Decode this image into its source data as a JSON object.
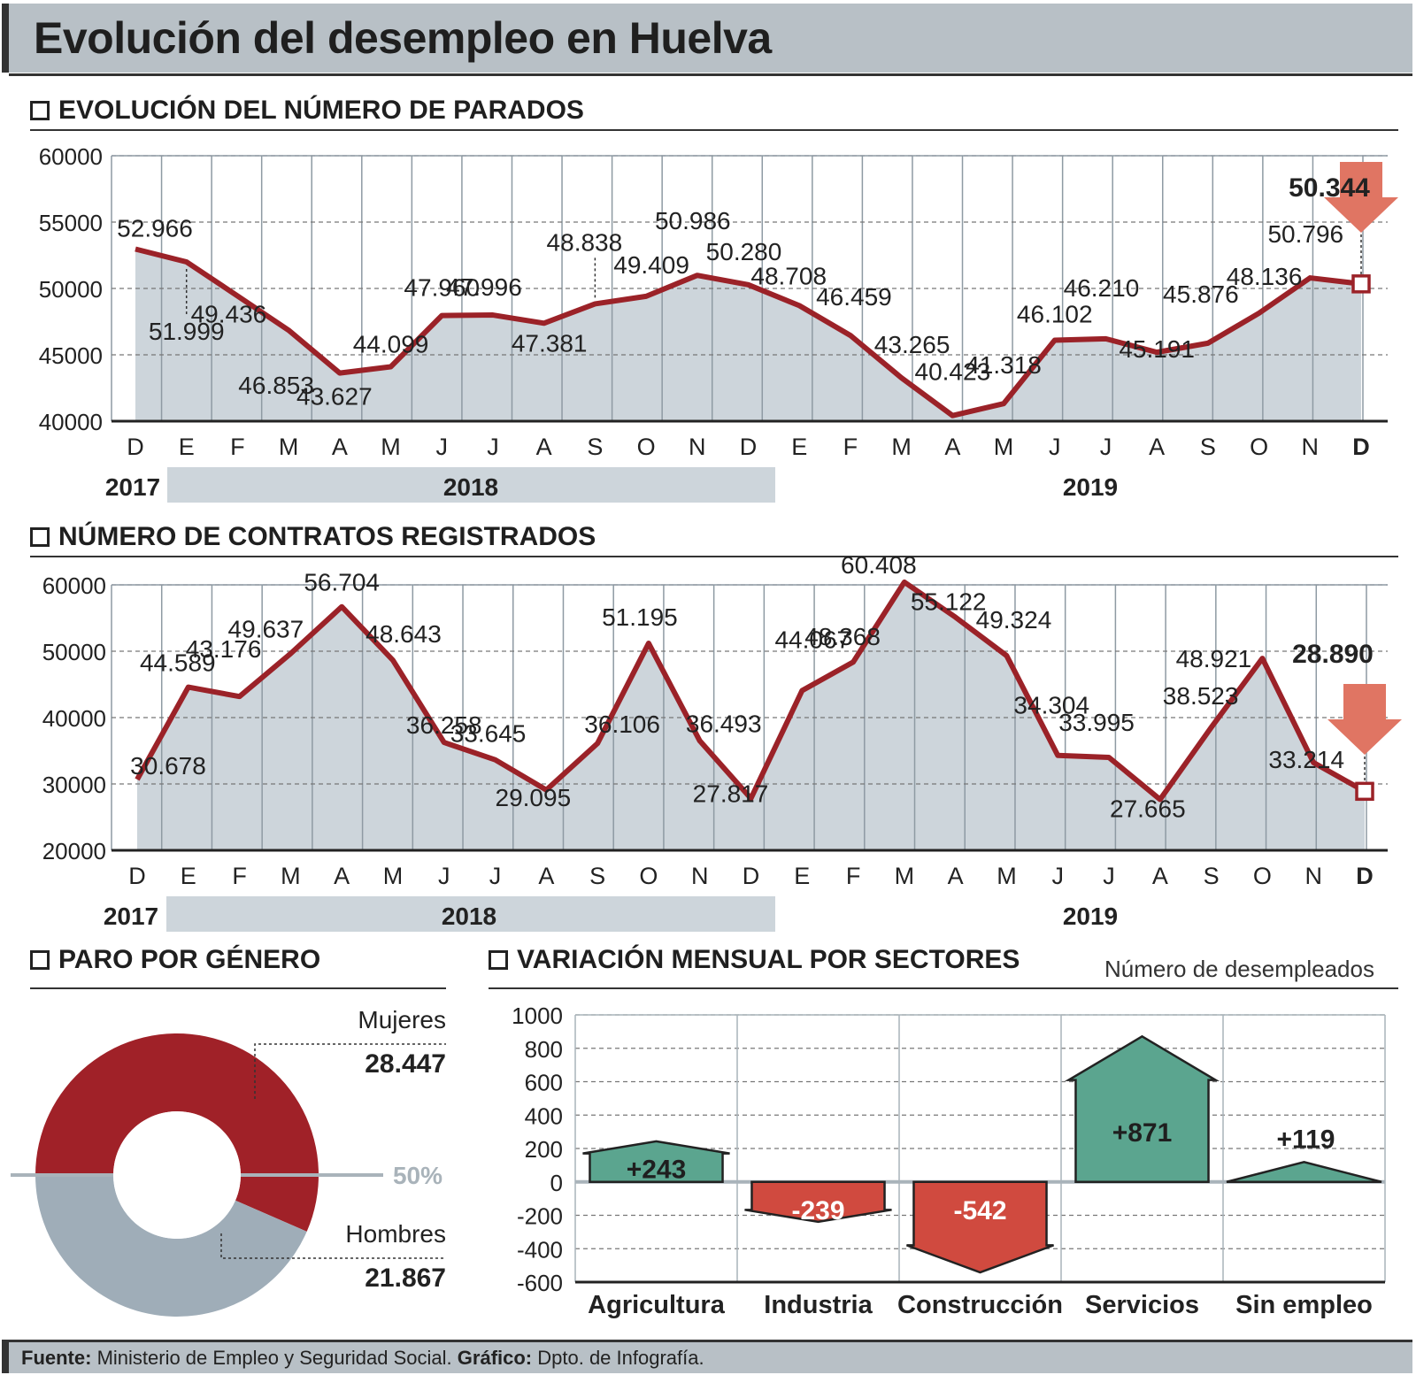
{
  "title": "Evolución del desempleo en Huelva",
  "sections": {
    "parados": "EVOLUCIÓN DEL NÚMERO DE PARADOS",
    "contratos": "NÚMERO DE CONTRATOS REGISTRADOS",
    "genero": "PARO POR GÉNERO",
    "sectores": "VARIACIÓN MENSUAL POR SECTORES",
    "sectores_note": "Número de desempleados"
  },
  "footer": {
    "fuente_label": "Fuente:",
    "fuente_text": " Ministerio de Empleo y Seguridad Social. ",
    "grafico_label": "Gráfico:",
    "grafico_text": " Dpto. de Infografía."
  },
  "colors": {
    "line": "#9b2228",
    "area": "#cdd5db",
    "arrow": "#e07563",
    "green": "#5ba58f",
    "red": "#d04a3f",
    "women": "#a02128",
    "men": "#9fadb8",
    "band": "#cdd5db"
  },
  "chart_data": [
    {
      "type": "area",
      "months": [
        "D",
        "E",
        "F",
        "M",
        "A",
        "M",
        "J",
        "J",
        "A",
        "S",
        "O",
        "N",
        "D",
        "E",
        "F",
        "M",
        "A",
        "M",
        "J",
        "J",
        "A",
        "S",
        "O",
        "N",
        "D"
      ],
      "years": [
        "2017",
        "2018",
        "2019"
      ],
      "values": [
        52966,
        51999,
        49436,
        46853,
        43627,
        44099,
        47960,
        47996,
        47381,
        48838,
        49409,
        50986,
        50280,
        48708,
        46459,
        43265,
        40423,
        41318,
        46102,
        46210,
        45191,
        45876,
        48136,
        50796,
        50344
      ],
      "labels": [
        "52.966",
        "51.999",
        "49.436",
        "46.853",
        "43.627",
        "44.099",
        "47.960",
        "47.996",
        "47.381",
        "48.838",
        "49.409",
        "50.986",
        "50.280",
        "48.708",
        "46.459",
        "43.265",
        "40.423",
        "41.318",
        "46.102",
        "46.210",
        "45.191",
        "45.876",
        "48.136",
        "50.796",
        "50.344"
      ],
      "yticks": [
        "40000",
        "45000",
        "50000",
        "55000",
        "60000"
      ],
      "ylim": [
        40000,
        60000
      ]
    },
    {
      "type": "area",
      "months": [
        "D",
        "E",
        "F",
        "M",
        "A",
        "M",
        "J",
        "J",
        "A",
        "S",
        "O",
        "N",
        "D",
        "E",
        "F",
        "M",
        "A",
        "M",
        "J",
        "J",
        "A",
        "S",
        "O",
        "N",
        "D"
      ],
      "years": [
        "2017",
        "2018",
        "2019"
      ],
      "values": [
        30678,
        44589,
        43176,
        49637,
        56704,
        48643,
        36258,
        33645,
        29095,
        36106,
        51195,
        36493,
        27817,
        44067,
        48368,
        60408,
        55122,
        49324,
        34304,
        33995,
        27665,
        38523,
        48921,
        33214,
        28890
      ],
      "labels": [
        "30.678",
        "44.589",
        "43.176",
        "49.637",
        "56.704",
        "48.643",
        "36.258",
        "33.645",
        "29.095",
        "36.106",
        "51.195",
        "36.493",
        "27.817",
        "44.067",
        "48.368",
        "60.408",
        "55.122",
        "49.324",
        "34.304",
        "33.995",
        "27.665",
        "38.523",
        "48.921",
        "33.214",
        "28.890"
      ],
      "yticks": [
        "20000",
        "30000",
        "40000",
        "50000",
        "60000"
      ],
      "ylim": [
        20000,
        60000
      ]
    },
    {
      "type": "pie",
      "slices": [
        {
          "label": "Mujeres",
          "value": 28447,
          "value_label": "28.447"
        },
        {
          "label": "Hombres",
          "value": 21867,
          "value_label": "21.867"
        }
      ],
      "reference_label": "50%"
    },
    {
      "type": "bar",
      "categories": [
        "Agricultura",
        "Industria",
        "Construcción",
        "Servicios",
        "Sin empleo"
      ],
      "values": [
        243,
        -239,
        -542,
        871,
        119
      ],
      "labels": [
        "+243",
        "-239",
        "-542",
        "+871",
        "+119"
      ],
      "yticks": [
        "-600",
        "-400",
        "-200",
        "0",
        "200",
        "400",
        "600",
        "800",
        "1000"
      ],
      "ylim": [
        -600,
        1000
      ]
    }
  ]
}
